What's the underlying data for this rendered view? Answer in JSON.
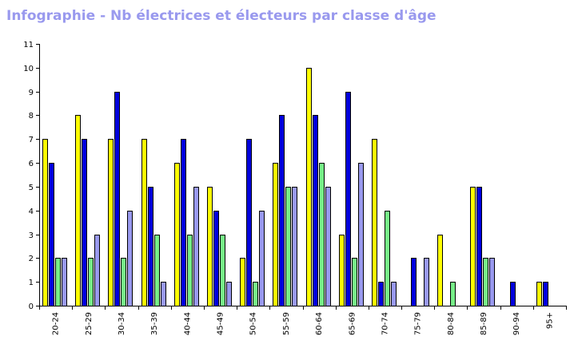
{
  "chart_data": {
    "type": "bar",
    "title": "Infographie - Nb électrices et électeurs par classe d'âge",
    "xlabel": "",
    "ylabel": "",
    "ylim": [
      0,
      11
    ],
    "yticks": [
      0,
      1,
      2,
      3,
      4,
      5,
      6,
      7,
      8,
      9,
      10,
      11
    ],
    "grid": false,
    "legend": "none",
    "categories": [
      "20-24",
      "25-29",
      "30-34",
      "35-39",
      "40-44",
      "45-49",
      "50-54",
      "55-59",
      "60-64",
      "65-69",
      "70-74",
      "75-79",
      "80-84",
      "85-89",
      "90-94",
      "95+"
    ],
    "series": [
      {
        "color": "#ffff00",
        "values": [
          7,
          8,
          7,
          7,
          6,
          5,
          2,
          6,
          10,
          3,
          7,
          0,
          3,
          5,
          0,
          1
        ]
      },
      {
        "color": "#0000dd",
        "values": [
          6,
          7,
          9,
          5,
          7,
          4,
          7,
          8,
          8,
          9,
          1,
          2,
          0,
          5,
          1,
          1
        ]
      },
      {
        "color": "#77ee88",
        "values": [
          2,
          2,
          2,
          3,
          3,
          3,
          1,
          5,
          6,
          2,
          4,
          0,
          1,
          2,
          0,
          0
        ]
      },
      {
        "color": "#9999ee",
        "values": [
          2,
          3,
          4,
          1,
          5,
          1,
          4,
          5,
          5,
          6,
          1,
          2,
          0,
          2,
          0,
          0
        ]
      }
    ]
  }
}
